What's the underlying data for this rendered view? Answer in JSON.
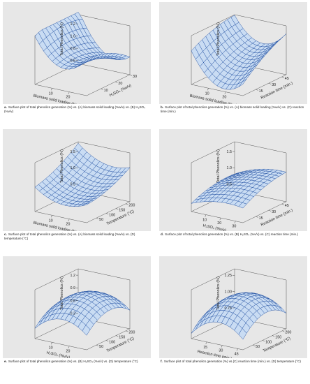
{
  "colors": {
    "panel_bg": "#e7e7e7",
    "mesh_fill": "#c9dcf3",
    "mesh_line": "#1f4ea0"
  },
  "chart_data": [
    {
      "type": "surface",
      "caption_letter": "a.",
      "caption": "Surface plot of total phenolics generation (%) vs. (A) biomass solid loading (%w/v) vs. (B) H₂SO₄ (%v/v)",
      "zlabel": "Total Phenolics (%)",
      "xlabel": "Biomass solid loading (%w/v)",
      "ylabel": "H₂SO₄ (%v/v)",
      "x_ticks": [
        "10",
        "20"
      ],
      "y_ticks": [
        "10",
        "20",
        "30"
      ],
      "z_ticks": [
        "0.6",
        "0.8",
        "1.0",
        "1.2"
      ],
      "xlim": [
        0,
        30
      ],
      "ylim": [
        0,
        30
      ],
      "zlim": [
        0.55,
        1.35
      ],
      "surface": {
        "c": 0.95,
        "x": -0.2,
        "y": -0.05,
        "x2": 0.32,
        "y2": -0.08,
        "xy": -0.1
      }
    },
    {
      "type": "surface",
      "caption_letter": "b.",
      "caption": "Surface plot of total phenolics generation (%) vs. (A) biomass solid loading (%w/v) vs. (C) reaction time (min.)",
      "zlabel": "Total Phenolics (%)",
      "xlabel": "Biomass solid loading (%w/v)",
      "ylabel": "Reaction time (min.)",
      "x_ticks": [
        "10",
        "20"
      ],
      "y_ticks": [
        "15",
        "30",
        "45"
      ],
      "z_ticks": [],
      "xlim": [
        0,
        30
      ],
      "ylim": [
        0,
        50
      ],
      "zlim": [
        0.55,
        1.35
      ],
      "surface": {
        "c": 0.85,
        "x": -0.12,
        "y": 0.18,
        "x2": 0.3,
        "y2": -0.05,
        "xy": 0.06
      }
    },
    {
      "type": "surface",
      "caption_letter": "c.",
      "caption": "Surface plot of total phenolics generation (%) vs. (A) biomass solid loading (%w/v) vs. (D) temperature (°C)",
      "zlabel": "Total Phenolics (%)",
      "xlabel": "Biomass solid loading (%w/v)",
      "ylabel": "Temperature (°C)",
      "x_ticks": [
        "10",
        "20"
      ],
      "y_ticks": [
        "50",
        "100",
        "150",
        "200"
      ],
      "z_ticks": [
        "0.5",
        "1.0",
        "1.5"
      ],
      "xlim": [
        0,
        30
      ],
      "ylim": [
        0,
        220
      ],
      "zlim": [
        0.3,
        1.8
      ],
      "surface": {
        "c": 0.9,
        "x": -0.15,
        "y": 0.3,
        "x2": 0.25,
        "y2": 0.1,
        "xy": -0.05
      }
    },
    {
      "type": "surface",
      "caption_letter": "d.",
      "caption": "Surface plot of total phenolics generation (%) vs. (B) H₂SO₄ (%v/v) vs. (C) reaction time (min.)",
      "zlabel": "Total Phenolics (%)",
      "xlabel": "H₂SO₄ (%v/v)",
      "ylabel": "Reaction time (min.)",
      "x_ticks": [
        "10",
        "20",
        "30"
      ],
      "y_ticks": [
        "15",
        "30",
        "45"
      ],
      "z_ticks": [
        "0.5",
        "1.0",
        "1.5"
      ],
      "xlim": [
        0,
        35
      ],
      "ylim": [
        0,
        50
      ],
      "zlim": [
        0.3,
        1.8
      ],
      "surface": {
        "c": 1.05,
        "x": 0.15,
        "y": 0.18,
        "x2": -0.12,
        "y2": -0.1,
        "xy": 0.05
      }
    },
    {
      "type": "surface",
      "caption_letter": "e.",
      "caption": "Surface plot of total phenolics generation (%) vs. (B) H₂SO₄ (%v/v) vs. (D) temperature (°C)",
      "zlabel": "Total Phenolics (%)",
      "xlabel": "H₂SO₄ (%v/v)",
      "ylabel": "Temperature (°C)",
      "x_ticks": [
        "10",
        "20"
      ],
      "y_ticks": [
        "50",
        "100",
        "150",
        "200"
      ],
      "z_ticks": [
        "0.3",
        "0.6",
        "0.9",
        "1.2"
      ],
      "xlim": [
        0,
        30
      ],
      "ylim": [
        0,
        220
      ],
      "zlim": [
        0.2,
        1.35
      ],
      "surface": {
        "c": 1.12,
        "x": 0.05,
        "y": 0.05,
        "x2": -0.3,
        "y2": -0.28,
        "xy": 0.0
      }
    },
    {
      "type": "surface",
      "caption_letter": "f.",
      "caption": "Surface plot of total phenolics generation (%) vs.(C) reaction time (min.) vs. (D) temperature (°C)",
      "zlabel": "Total Phenolics (%)",
      "xlabel": "Reaction time (min.)",
      "ylabel": "Temperature (°C)",
      "x_ticks": [
        "15",
        "30",
        "45"
      ],
      "y_ticks": [
        "50",
        "100",
        "150",
        "200"
      ],
      "z_ticks": [
        "0.75",
        "1.00",
        "1.25"
      ],
      "xlim": [
        0,
        50
      ],
      "ylim": [
        0,
        220
      ],
      "zlim": [
        0.6,
        1.35
      ],
      "surface": {
        "c": 1.18,
        "x": 0.04,
        "y": 0.04,
        "x2": -0.22,
        "y2": -0.2,
        "xy": 0.0
      }
    }
  ]
}
